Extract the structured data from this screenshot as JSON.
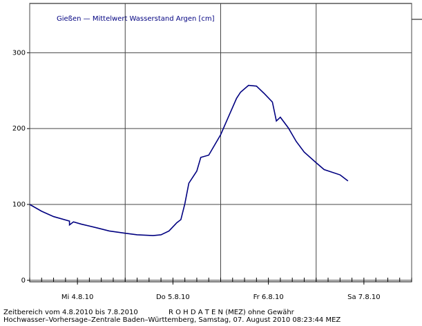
{
  "chart_data": {
    "type": "line",
    "x": [
      0,
      3,
      6,
      10,
      10,
      11,
      13,
      17,
      20,
      24,
      27,
      31,
      33,
      35,
      37,
      38,
      39,
      40,
      42,
      43,
      45,
      46,
      48,
      50,
      52,
      53,
      55,
      57,
      59,
      61,
      62,
      63,
      65,
      67,
      69,
      72,
      74,
      78,
      80
    ],
    "series": [
      {
        "name": "Gießen — Mittelwert Wasserstand Argen [cm]",
        "color": "#000080",
        "values": [
          100,
          91,
          84,
          78,
          73,
          77,
          74,
          69,
          65,
          62,
          60,
          59,
          60,
          65,
          76,
          80,
          101,
          128,
          144,
          162,
          165,
          174,
          192,
          216,
          240,
          248,
          257,
          256,
          246,
          235,
          210,
          215,
          201,
          183,
          169,
          155,
          146,
          139,
          131
        ]
      }
    ],
    "xlim": [
      0,
      96
    ],
    "xticks": [
      {
        "value": 12,
        "label": "Mi 4.8.10"
      },
      {
        "value": 36,
        "label": "Do 5.8.10"
      },
      {
        "value": 60,
        "label": "Fr 6.8.10"
      },
      {
        "value": 84,
        "label": "Sa 7.8.10"
      }
    ],
    "xgrid": [
      0,
      24,
      48,
      72,
      96
    ],
    "xminorticks": [
      0,
      3,
      6,
      9,
      12,
      15,
      18,
      21,
      24,
      27,
      30,
      33,
      36,
      39,
      42,
      45,
      48,
      51,
      54,
      57,
      60,
      63,
      66,
      69,
      72,
      75,
      78,
      81,
      84,
      87,
      90,
      93,
      96
    ],
    "ylim": [
      -2,
      365
    ],
    "yticks": [
      0,
      100,
      200,
      300
    ],
    "grid": true,
    "footer": [
      "Zeitbereich vom 4.8.2010 bis 7.8.2010",
      "R O H D A T E N (MEZ) ohne Gewähr",
      "Hochwasser–Vorhersage–Zentrale Baden–Württemberg, Samstag, 07. August 2010 08:23:44 MEZ"
    ]
  }
}
